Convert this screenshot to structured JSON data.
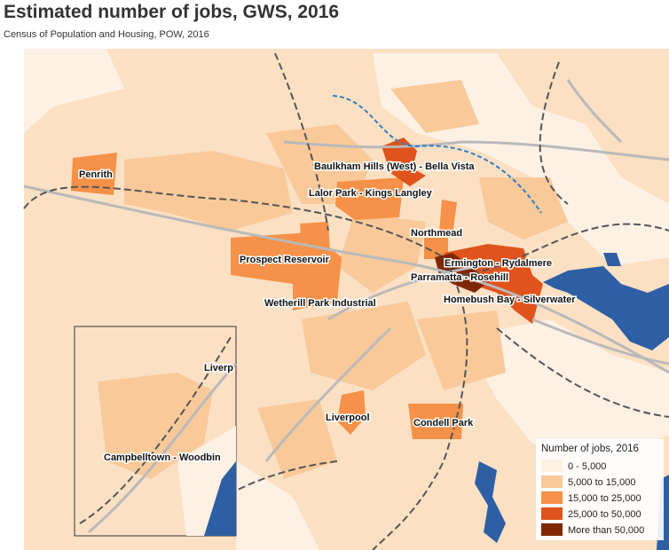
{
  "header": {
    "title": "Estimated number of jobs, GWS, 2016",
    "subtitle": "Census of Population and Housing, POW, 2016"
  },
  "map": {
    "labels": [
      "Penrith",
      "Baulkham Hills (West) - Bella Vista",
      "Lalor Park - Kings Langley",
      "Northmead",
      "Prospect Reservoir",
      "Ermington - Rydalmere",
      "Parramatta - Rosehill",
      "Wetherill Park Industrial",
      "Homebush Bay - Silverwater",
      "Liverpool",
      "Condell Park",
      "Liverp",
      "Campbelltown - Woodbin"
    ]
  },
  "legend": {
    "title": "Number of jobs, 2016",
    "items": [
      {
        "label": "0 - 5,000",
        "color": "#fdf1e4"
      },
      {
        "label": "5,000 to 15,000",
        "color": "#f9c99a"
      },
      {
        "label": "15,000 to 25,000",
        "color": "#f59148"
      },
      {
        "label": "25,000 to 50,000",
        "color": "#e0531c"
      },
      {
        "label": "More than 50,000",
        "color": "#7f2704"
      }
    ]
  }
}
